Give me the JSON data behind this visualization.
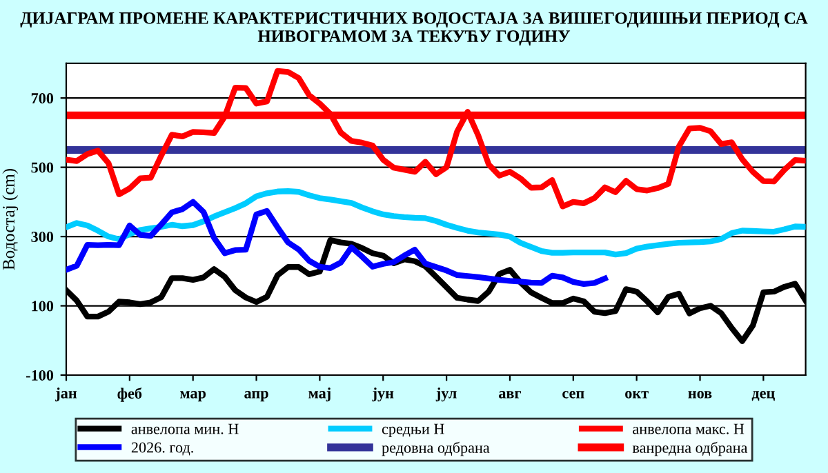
{
  "chart_data": {
    "type": "line",
    "title": "ДИЈАГРАМ ПРОМЕНЕ КАРАКТЕРИСТИЧНИХ ВОДОСТАЈА ЗА ВИШЕГОДИШЊИ ПЕРИОД СА НИВОГРАМОМ ЗА ТЕКУЋУ ГОДИНУ",
    "ylabel": "Водостај (cm)",
    "categories": [
      "јан",
      null,
      null,
      null,
      null,
      null,
      "феб",
      null,
      null,
      null,
      null,
      null,
      "мар",
      null,
      null,
      null,
      null,
      null,
      "апр",
      null,
      null,
      null,
      null,
      null,
      "мај",
      null,
      null,
      null,
      null,
      null,
      "јун",
      null,
      null,
      null,
      null,
      null,
      "јул",
      null,
      null,
      null,
      null,
      null,
      "авг",
      null,
      null,
      null,
      null,
      null,
      "сеп",
      null,
      null,
      null,
      null,
      null,
      "окт",
      null,
      null,
      null,
      null,
      null,
      "нов",
      null,
      null,
      null,
      null,
      null,
      "дец",
      null,
      null,
      null,
      null
    ],
    "ylim": [
      -100,
      800
    ],
    "yticks": [
      -100,
      100,
      300,
      500,
      700
    ],
    "grid": "y",
    "legend": "bottom",
    "marker": "none",
    "line_style": "solid",
    "series": [
      {
        "name": "анвелопа мин. Н",
        "color": "#000000",
        "values": [
          145,
          115,
          69,
          69,
          83,
          112,
          110,
          105,
          110,
          125,
          180,
          180,
          175,
          182,
          206,
          184,
          145,
          124,
          111,
          126,
          188,
          212,
          212,
          191,
          199,
          290,
          283,
          279,
          267,
          252,
          245,
          223,
          234,
          229,
          214,
          184,
          154,
          123,
          118,
          114,
          141,
          192,
          204,
          168,
          139,
          123,
          108,
          108,
          121,
          113,
          83,
          79,
          85,
          148,
          141,
          113,
          81,
          126,
          135,
          78,
          93,
          100,
          79,
          36,
          -2,
          43,
          139,
          141,
          155,
          164,
          115
        ]
      },
      {
        "name": "средњи Н",
        "color": "#00ccff",
        "values": [
          327,
          339,
          332,
          317,
          300,
          292,
          307,
          319,
          324,
          328,
          334,
          330,
          333,
          344,
          358,
          370,
          382,
          396,
          416,
          425,
          430,
          431,
          429,
          419,
          411,
          407,
          402,
          397,
          384,
          373,
          364,
          359,
          356,
          354,
          353,
          345,
          334,
          325,
          317,
          312,
          309,
          306,
          300,
          282,
          270,
          258,
          253,
          253,
          254,
          254,
          254,
          254,
          248,
          252,
          265,
          271,
          275,
          279,
          282,
          283,
          284,
          286,
          293,
          310,
          317,
          316,
          315,
          314,
          321,
          329,
          328
        ]
      },
      {
        "name": "анвелопа макс. Н",
        "color": "#ff0000",
        "values": [
          522,
          518,
          538,
          548,
          512,
          422,
          439,
          468,
          470,
          534,
          594,
          589,
          602,
          601,
          599,
          646,
          730,
          729,
          684,
          690,
          778,
          775,
          758,
          708,
          684,
          654,
          600,
          576,
          571,
          563,
          522,
          499,
          493,
          487,
          516,
          480,
          500,
          603,
          660,
          592,
          508,
          476,
          487,
          468,
          441,
          442,
          463,
          387,
          400,
          396,
          411,
          442,
          428,
          461,
          437,
          433,
          440,
          452,
          560,
          612,
          614,
          604,
          567,
          572,
          523,
          487,
          460,
          459,
          493,
          521,
          519
        ]
      },
      {
        "name": "2026. год.",
        "color": "#0000ff",
        "values": [
          204,
          216,
          276,
          275,
          276,
          275,
          332,
          305,
          302,
          335,
          370,
          379,
          400,
          371,
          296,
          252,
          261,
          262,
          364,
          374,
          327,
          283,
          263,
          230,
          213,
          209,
          225,
          269,
          242,
          213,
          221,
          226,
          245,
          262,
          222,
          212,
          202,
          189,
          186,
          183,
          179,
          175,
          172,
          170,
          167,
          166,
          187,
          182,
          169,
          163,
          166,
          179,
          null,
          null,
          null,
          null,
          null,
          null,
          null,
          null,
          null,
          null,
          null,
          null,
          null,
          null,
          null,
          null,
          null,
          null,
          null
        ]
      }
    ],
    "ref_lines": [
      {
        "axis": "y",
        "value": 550,
        "label": "редовна одбрана",
        "color": "#333399",
        "line_style": "solid"
      },
      {
        "axis": "y",
        "value": 650,
        "label": "ванредна одбрана",
        "color": "#ff0000",
        "line_style": "solid"
      }
    ]
  }
}
